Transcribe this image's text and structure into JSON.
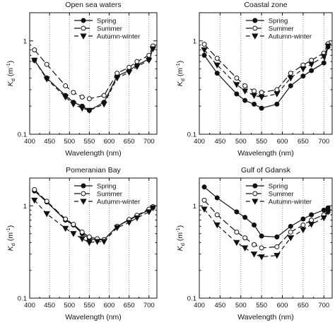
{
  "chart_data": [
    {
      "type": "line",
      "title": "Open sea waters",
      "xlabel": "Wavelength (nm)",
      "ylabel": "Kd (m-1)",
      "ylabel_main": "K",
      "ylabel_sub": "d",
      "ylabel_unit": "(m",
      "ylabel_exp": "-1",
      "ylabel_close": ")",
      "yscale": "log",
      "xlim": [
        400,
        720
      ],
      "ylim": [
        0.1,
        2
      ],
      "x_ticks": [
        "400",
        "450",
        "500",
        "550",
        "600",
        "650",
        "700"
      ],
      "y_ticks": [
        "0.1",
        "1"
      ],
      "grid": "vertical dotted at 450, 500, 550, 600, 650, 700",
      "legend": "top-center",
      "x": [
        412,
        443,
        490,
        510,
        532,
        550,
        587,
        620,
        650,
        670,
        700,
        710
      ],
      "series": [
        {
          "name": "Spring",
          "marker": "filled-circle",
          "dash": "solid",
          "values": [
            0.62,
            0.4,
            0.26,
            0.22,
            0.2,
            0.18,
            0.22,
            0.42,
            0.48,
            0.55,
            0.64,
            0.84
          ]
        },
        {
          "name": "Summer",
          "marker": "open-circle",
          "dash": "long-dash",
          "values": [
            0.8,
            0.56,
            0.33,
            0.28,
            0.25,
            0.24,
            0.26,
            0.45,
            0.52,
            0.6,
            0.7,
            0.88
          ]
        },
        {
          "name": "Autumn-winter",
          "marker": "filled-triangle-down",
          "dash": "dash",
          "values": [
            0.62,
            0.39,
            0.25,
            0.21,
            0.19,
            0.18,
            0.21,
            0.4,
            0.46,
            0.53,
            0.62,
            0.82
          ]
        }
      ]
    },
    {
      "type": "line",
      "title": "Coastal zone",
      "xlabel": "Wavelength (nm)",
      "ylabel": "Kd (m-1)",
      "ylabel_main": "K",
      "ylabel_sub": "d",
      "ylabel_unit": "(m",
      "ylabel_exp": "-1",
      "ylabel_close": ")",
      "yscale": "log",
      "xlim": [
        400,
        720
      ],
      "ylim": [
        0.1,
        2
      ],
      "x_ticks": [
        "400",
        "450",
        "500",
        "550",
        "600",
        "650",
        "700"
      ],
      "y_ticks": [
        "0.1",
        "1"
      ],
      "grid": "vertical dotted at 450, 500, 550, 600, 650, 700",
      "legend": "top-center",
      "x": [
        412,
        443,
        490,
        510,
        532,
        550,
        587,
        620,
        650,
        670,
        700,
        710
      ],
      "series": [
        {
          "name": "Spring",
          "marker": "filled-circle",
          "dash": "solid",
          "values": [
            0.7,
            0.45,
            0.27,
            0.23,
            0.21,
            0.19,
            0.21,
            0.33,
            0.42,
            0.48,
            0.58,
            0.86
          ]
        },
        {
          "name": "Summer",
          "marker": "open-circle",
          "dash": "long-dash",
          "values": [
            0.92,
            0.65,
            0.4,
            0.33,
            0.29,
            0.28,
            0.3,
            0.45,
            0.55,
            0.62,
            0.74,
            0.93
          ]
        },
        {
          "name": "Autumn-winter",
          "marker": "filled-triangle-down",
          "dash": "dash",
          "values": [
            0.8,
            0.55,
            0.34,
            0.29,
            0.26,
            0.25,
            0.27,
            0.4,
            0.5,
            0.56,
            0.68,
            0.88
          ]
        }
      ]
    },
    {
      "type": "line",
      "title": "Pomeranian Bay",
      "xlabel": "Wavelength (nm)",
      "ylabel": "Kd (m-1)",
      "ylabel_main": "K",
      "ylabel_sub": "d",
      "ylabel_unit": "(m",
      "ylabel_exp": "-1",
      "ylabel_close": ")",
      "yscale": "log",
      "xlim": [
        400,
        720
      ],
      "ylim": [
        0.1,
        2
      ],
      "x_ticks": [
        "400",
        "450",
        "500",
        "550",
        "600",
        "650",
        "700"
      ],
      "y_ticks": [
        "0.1",
        "1"
      ],
      "grid": "vertical dotted at 450, 500, 550, 600, 650, 700",
      "legend": "top-center",
      "x": [
        412,
        443,
        490,
        510,
        532,
        550,
        570,
        587,
        620,
        650,
        670,
        700,
        710
      ],
      "series": [
        {
          "name": "Spring",
          "marker": "filled-circle",
          "dash": "solid",
          "values": [
            1.45,
            1.1,
            0.7,
            0.62,
            0.5,
            0.44,
            0.43,
            0.43,
            0.6,
            0.7,
            0.78,
            0.9,
            0.96
          ]
        },
        {
          "name": "Summer",
          "marker": "open-circle",
          "dash": "long-dash",
          "values": [
            1.5,
            1.12,
            0.72,
            0.63,
            0.52,
            0.46,
            0.44,
            0.43,
            0.6,
            0.71,
            0.79,
            0.92,
            0.98
          ]
        },
        {
          "name": "Autumn-winter",
          "marker": "filled-triangle-down",
          "dash": "dash",
          "values": [
            1.15,
            0.82,
            0.57,
            0.5,
            0.44,
            0.4,
            0.41,
            0.41,
            0.58,
            0.66,
            0.74,
            0.86,
            0.95
          ]
        }
      ]
    },
    {
      "type": "line",
      "title": "Gulf of Gdansk",
      "xlabel": "Wavelength (nm)",
      "ylabel": "Kd (m-1)",
      "ylabel_main": "K",
      "ylabel_sub": "d",
      "ylabel_unit": "(m",
      "ylabel_exp": "-1",
      "ylabel_close": ")",
      "yscale": "log",
      "xlim": [
        400,
        720
      ],
      "ylim": [
        0.1,
        2
      ],
      "x_ticks": [
        "400",
        "450",
        "500",
        "550",
        "600",
        "650",
        "700"
      ],
      "y_ticks": [
        "0.1",
        "1"
      ],
      "grid": "vertical dotted at 450, 500, 550, 600, 650, 700",
      "legend": "top-center",
      "x": [
        412,
        443,
        490,
        510,
        532,
        550,
        587,
        620,
        650,
        670,
        700,
        710
      ],
      "series": [
        {
          "name": "Spring",
          "marker": "filled-circle",
          "dash": "solid",
          "values": [
            1.6,
            1.22,
            0.86,
            0.75,
            0.62,
            0.47,
            0.46,
            0.6,
            0.72,
            0.8,
            0.9,
            0.95
          ]
        },
        {
          "name": "Summer",
          "marker": "open-circle",
          "dash": "long-dash",
          "values": [
            1.15,
            0.8,
            0.52,
            0.45,
            0.38,
            0.35,
            0.36,
            0.52,
            0.62,
            0.7,
            0.8,
            0.86
          ]
        },
        {
          "name": "Autumn-winter",
          "marker": "filled-triangle-down",
          "dash": "dash",
          "values": [
            0.92,
            0.62,
            0.4,
            0.35,
            0.3,
            0.28,
            0.29,
            0.45,
            0.55,
            0.63,
            0.74,
            0.86
          ]
        }
      ]
    }
  ]
}
